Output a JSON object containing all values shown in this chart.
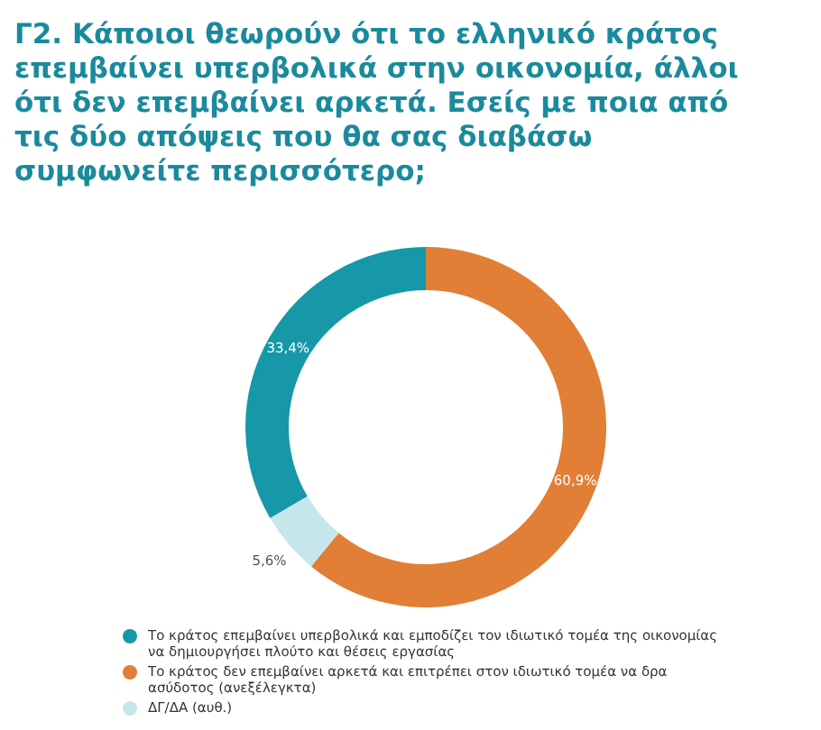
{
  "chart_data": {
    "type": "donut",
    "title": "Γ2. Κάποιοι θεωρούν ότι το ελληνικό κράτος επεμβαίνει υπερβολικά στην οικονομία, άλλοι ότι δεν επεμβαίνει αρκετά. Εσείς με ποια από τις δύο απόψεις που θα σας διαβάσω συμφωνείτε περισσότερο;",
    "categories": [
      "Το κράτος επεμβαίνει υπερβολικά και εμποδίζει τον ιδιωτικό τομέα της οικονομίας να δημιουργήσει πλούτο και θέσεις εργασίας",
      "Το κράτος δεν επεμβαίνει αρκετά και επιτρέπει στον ιδιωτικό τομέα να δρα ασύδοτος (ανεξέλεγκτα)",
      "ΔΓ/ΔΑ (αυθ.)"
    ],
    "values": [
      33.4,
      60.9,
      5.6
    ],
    "value_labels": [
      "33,4%",
      "60,9%",
      "5,6%"
    ],
    "colors": [
      "#1698a8",
      "#e07f35",
      "#c5e6ea"
    ],
    "legend": "bottom"
  }
}
